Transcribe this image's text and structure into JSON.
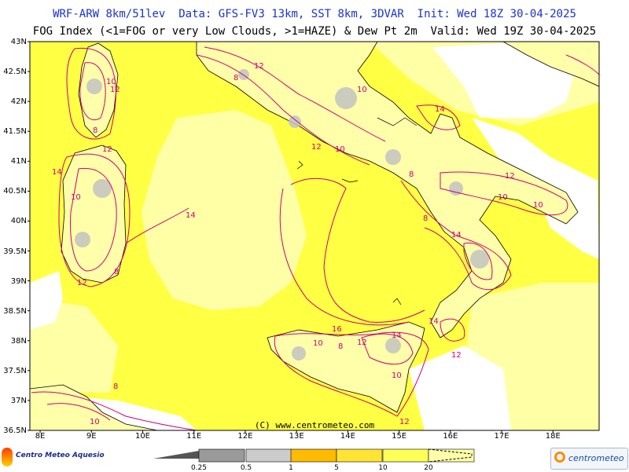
{
  "header": {
    "title_line1": "WRF-ARW 8km/51lev  Data: GFS-FV3 13km, SST 8km, 3DVAR  Init: Wed 18Z 30-04-2025",
    "title_line2": "FOG Index (<1=FOG or very Low Clouds, >1=HAZE) & Dew Pt 2m  Valid: Wed 19Z 30-04-2025"
  },
  "map": {
    "lat_labels": [
      "43N",
      "42.5N",
      "42N",
      "41.5N",
      "41N",
      "40.5N",
      "40N",
      "39.5N",
      "39N",
      "38.5N",
      "38N",
      "37.5N",
      "37N",
      "36.5N"
    ],
    "lon_labels": [
      "8E",
      "9E",
      "10E",
      "11E",
      "12E",
      "13E",
      "14E",
      "15E",
      "16E",
      "17E",
      "18E"
    ],
    "lat_range": [
      36.5,
      43.0
    ],
    "lon_range": [
      7.8,
      18.9
    ],
    "credit": "(C) www.centrometeo.com",
    "dew_point_contour_labels": [
      "12",
      "10",
      "8",
      "14",
      "12",
      "14",
      "10",
      "8",
      "12",
      "8",
      "12",
      "10",
      "14",
      "12",
      "10",
      "8",
      "10",
      "12",
      "10",
      "8",
      "14",
      "16",
      "14",
      "12",
      "10",
      "8",
      "12",
      "14",
      "10",
      "12",
      "10",
      "8"
    ],
    "colors": {
      "haze_yellow": "#ffff33",
      "pale_yellow": "#ffff9a",
      "white": "#ffffff",
      "contour": "#cc0077",
      "terrain_grey": "#bfbfbf"
    }
  },
  "legend": {
    "breaks": [
      "0.25",
      "0.5",
      "1",
      "5",
      "10",
      "20"
    ],
    "colors": [
      "#555555",
      "#9a9a9a",
      "#cccccc",
      "#ffbb00",
      "#ffe433",
      "#ffff55",
      "#ffffaa"
    ]
  },
  "logos": {
    "left_text": "Centro Meteo Aquesio",
    "right_text": "centrometeo"
  }
}
